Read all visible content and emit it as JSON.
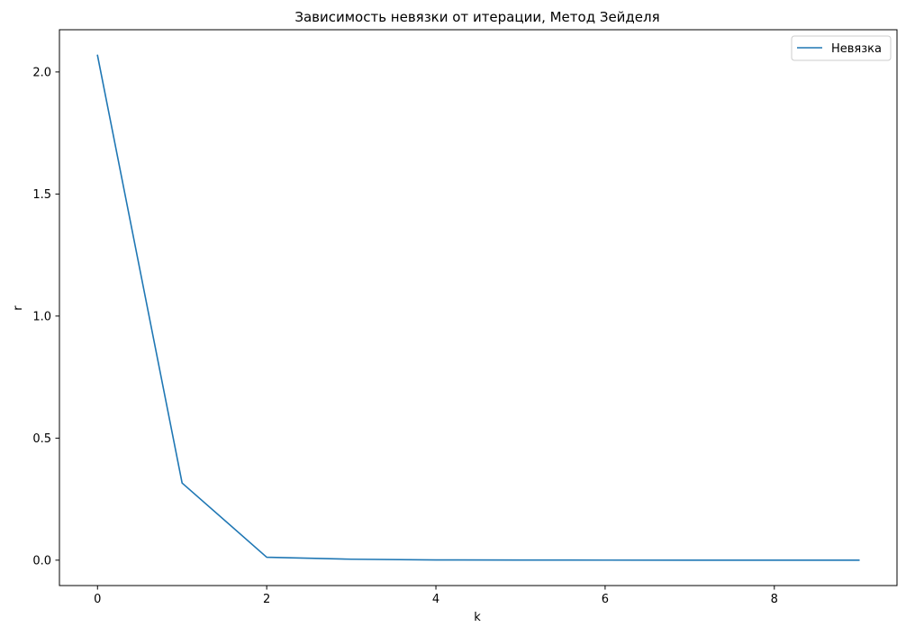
{
  "chart_data": {
    "type": "line",
    "title": "Зависимость невязки от итерации, Метод Зейделя",
    "xlabel": "k",
    "ylabel": "r",
    "xlim": [
      -0.45,
      9.45
    ],
    "ylim": [
      -0.104,
      2.173
    ],
    "xticks": [
      0,
      2,
      4,
      6,
      8
    ],
    "xtick_labels": [
      "0",
      "2",
      "4",
      "6",
      "8"
    ],
    "yticks": [
      0.0,
      0.5,
      1.0,
      1.5,
      2.0
    ],
    "ytick_labels": [
      "0.0",
      "0.5",
      "1.0",
      "1.5",
      "2.0"
    ],
    "grid": false,
    "legend": {
      "position": "top-right"
    },
    "series": [
      {
        "name": "Невязка",
        "color": "#1f77b4",
        "x": [
          0,
          1,
          2,
          3,
          4,
          5,
          6,
          7,
          8,
          9
        ],
        "y": [
          2.068,
          0.316,
          0.012,
          0.004,
          0.001,
          0.0005,
          0.0002,
          0.0001,
          5e-05,
          2e-05
        ]
      }
    ]
  }
}
